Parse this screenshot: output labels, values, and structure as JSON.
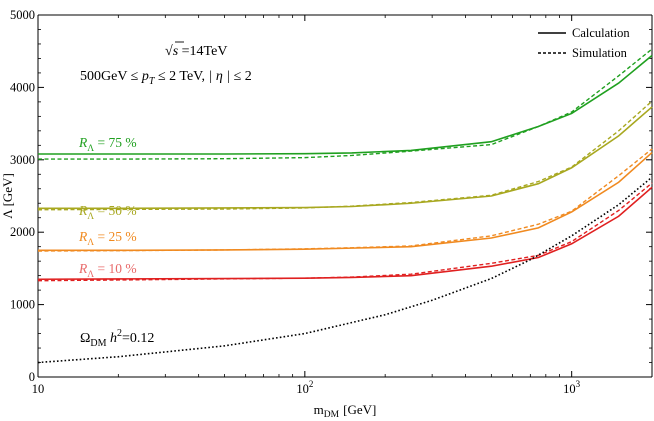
{
  "chart_data": {
    "type": "line",
    "title": "",
    "xlabel_main": "m",
    "xlabel_sub": "DM",
    "xlabel_unit": "[GeV]",
    "ylabel": "Λ [GeV]",
    "x_scale": "log",
    "xlim": [
      10,
      2000
    ],
    "ylim": [
      0,
      5000
    ],
    "x_ticks": [
      {
        "value": 10,
        "base": "10",
        "exp": ""
      },
      {
        "value": 100,
        "base": "10",
        "exp": "2"
      },
      {
        "value": 1000,
        "base": "10",
        "exp": "3"
      }
    ],
    "y_ticks": [
      0,
      1000,
      2000,
      3000,
      4000,
      5000
    ],
    "grid": false,
    "legend": {
      "position": "top-right",
      "entries": [
        {
          "label": "Calculation",
          "style": "solid"
        },
        {
          "label": "Simulation",
          "style": "dashed"
        }
      ]
    },
    "annotations": {
      "sqrt_s": {
        "prefix": "√",
        "s": "s",
        "rest": " =14TeV"
      },
      "cuts": {
        "pre": "500GeV ≤ ",
        "pT": "p",
        "pT_sub": "T",
        "mid": " ≤ 2 TeV,  ",
        "eta": "| η |",
        "post": " ≤ 2"
      },
      "relic": {
        "omega": "Ω",
        "sub": "DM",
        "h": " h",
        "sup": "2",
        "rest": "=0.12"
      }
    },
    "series": [
      {
        "name": "R_Λ = 75 %",
        "label_main": "R",
        "label_sub": "Λ",
        "label_rest": " = 75 %",
        "color": "#20a020",
        "x": [
          10,
          20,
          50,
          100,
          150,
          250,
          500,
          750,
          1000,
          1500,
          2000
        ],
        "calculation": [
          3080,
          3080,
          3080,
          3085,
          3095,
          3130,
          3250,
          3460,
          3640,
          4060,
          4440
        ],
        "simulation": [
          3010,
          3010,
          3015,
          3030,
          3060,
          3120,
          3210,
          3460,
          3660,
          4160,
          4530
        ]
      },
      {
        "name": "R_Λ = 50 %",
        "label_main": "R",
        "label_sub": "Λ",
        "label_rest": " = 50 %",
        "color": "#a8a820",
        "x": [
          10,
          20,
          50,
          100,
          150,
          250,
          500,
          750,
          1000,
          1500,
          2000
        ],
        "calculation": [
          2330,
          2330,
          2335,
          2340,
          2355,
          2400,
          2500,
          2670,
          2890,
          3330,
          3730
        ],
        "simulation": [
          2310,
          2315,
          2320,
          2335,
          2360,
          2410,
          2510,
          2700,
          2900,
          3400,
          3810
        ]
      },
      {
        "name": "R_Λ = 25 %",
        "label_main": "R",
        "label_sub": "Λ",
        "label_rest": " = 25 %",
        "color": "#f08a20",
        "x": [
          10,
          20,
          50,
          100,
          150,
          250,
          500,
          750,
          1000,
          1500,
          2000
        ],
        "calculation": [
          1750,
          1750,
          1755,
          1765,
          1780,
          1800,
          1920,
          2060,
          2280,
          2690,
          3100
        ],
        "simulation": [
          1740,
          1745,
          1755,
          1770,
          1785,
          1810,
          1950,
          2110,
          2290,
          2780,
          3150
        ]
      },
      {
        "name": "R_Λ = 10 %",
        "label_main": "R",
        "label_sub": "Λ",
        "label_rest": " = 10 %",
        "color": "#e02020",
        "x": [
          10,
          20,
          50,
          100,
          150,
          250,
          500,
          750,
          1000,
          1500,
          2000
        ],
        "calculation": [
          1350,
          1355,
          1360,
          1365,
          1375,
          1400,
          1530,
          1650,
          1840,
          2220,
          2620
        ],
        "simulation": [
          1330,
          1340,
          1355,
          1365,
          1380,
          1420,
          1570,
          1680,
          1870,
          2300,
          2680
        ]
      },
      {
        "name": "Ω_DM h² = 0.12",
        "color": "#000000",
        "style": "dotted",
        "x": [
          10,
          20,
          50,
          100,
          200,
          300,
          500,
          700,
          1000,
          1500,
          2000
        ],
        "relic": [
          200,
          280,
          430,
          600,
          860,
          1060,
          1360,
          1620,
          1950,
          2380,
          2760
        ]
      }
    ]
  }
}
